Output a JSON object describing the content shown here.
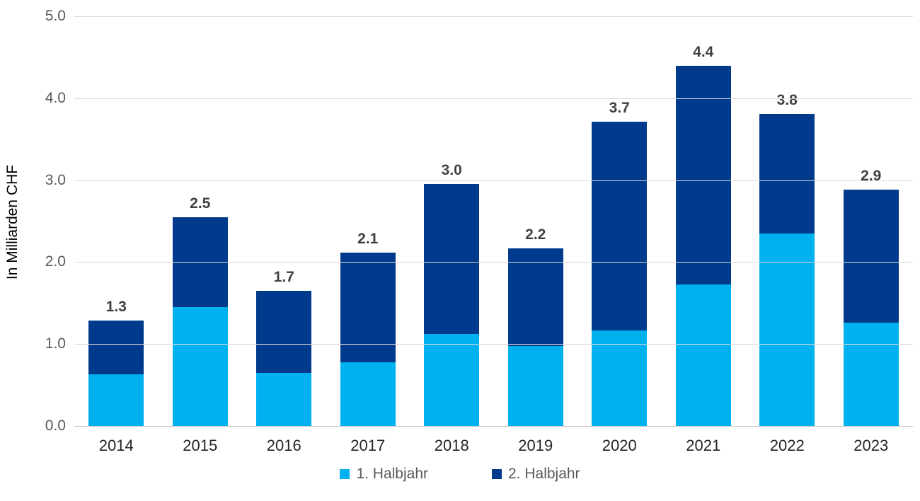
{
  "chart_data": {
    "type": "bar",
    "stacked": true,
    "ylabel": "In Milliarden CHF",
    "xlabel": "",
    "ylim": [
      0,
      5
    ],
    "yticks": [
      "0.0",
      "1.0",
      "2.0",
      "3.0",
      "4.0",
      "5.0"
    ],
    "grid": true,
    "legend_position": "bottom-center",
    "categories": [
      "2014",
      "2015",
      "2016",
      "2017",
      "2018",
      "2019",
      "2020",
      "2021",
      "2022",
      "2023"
    ],
    "series": [
      {
        "name": "1. Halbjahr",
        "color": "#00b1f0",
        "values": [
          0.63,
          1.45,
          0.65,
          0.78,
          1.12,
          0.98,
          1.17,
          1.73,
          2.35,
          1.26
        ]
      },
      {
        "name": "2. Halbjahr",
        "color": "#003a8c",
        "values": [
          0.66,
          1.1,
          1.0,
          1.34,
          1.83,
          1.19,
          2.55,
          2.67,
          1.46,
          1.62
        ]
      }
    ],
    "total_labels": [
      "1.3",
      "2.5",
      "1.7",
      "2.1",
      "3.0",
      "2.2",
      "3.7",
      "4.4",
      "3.8",
      "2.9"
    ]
  },
  "colors": {
    "background": "#ffffff",
    "grid": "#d9d9d9",
    "baseline": "#c4c4c4",
    "tick_label": "#595959",
    "category_label": "#262626",
    "value_label": "#404040",
    "legend_text": "#595959",
    "axis_title": "#000000"
  }
}
